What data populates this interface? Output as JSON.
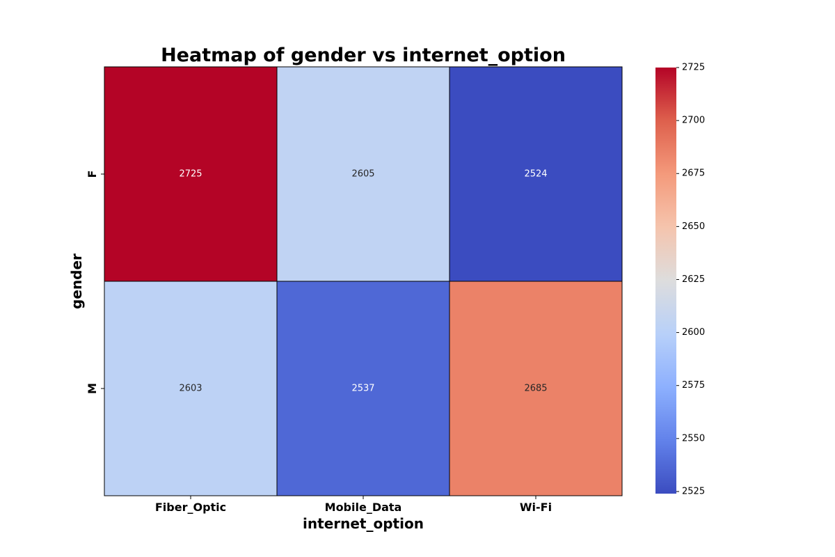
{
  "chart_data": {
    "type": "heatmap",
    "title": "Heatmap of gender vs internet_option",
    "xlabel": "internet_option",
    "ylabel": "gender",
    "x_categories": [
      "Fiber_Optic",
      "Mobile_Data",
      "Wi-Fi"
    ],
    "y_categories": [
      "F",
      "M"
    ],
    "values": [
      [
        2725,
        2605,
        2524
      ],
      [
        2603,
        2537,
        2685
      ]
    ],
    "colormap": "coolwarm",
    "colorbar": {
      "range": [
        2524,
        2725
      ],
      "ticks": [
        2525,
        2550,
        2575,
        2600,
        2625,
        2650,
        2675,
        2700,
        2725
      ],
      "tick_labels": [
        "2525",
        "2550",
        "2575",
        "2600",
        "2625",
        "2650",
        "2675",
        "2700",
        "2725"
      ]
    },
    "cell_labels": true,
    "grid": false
  }
}
